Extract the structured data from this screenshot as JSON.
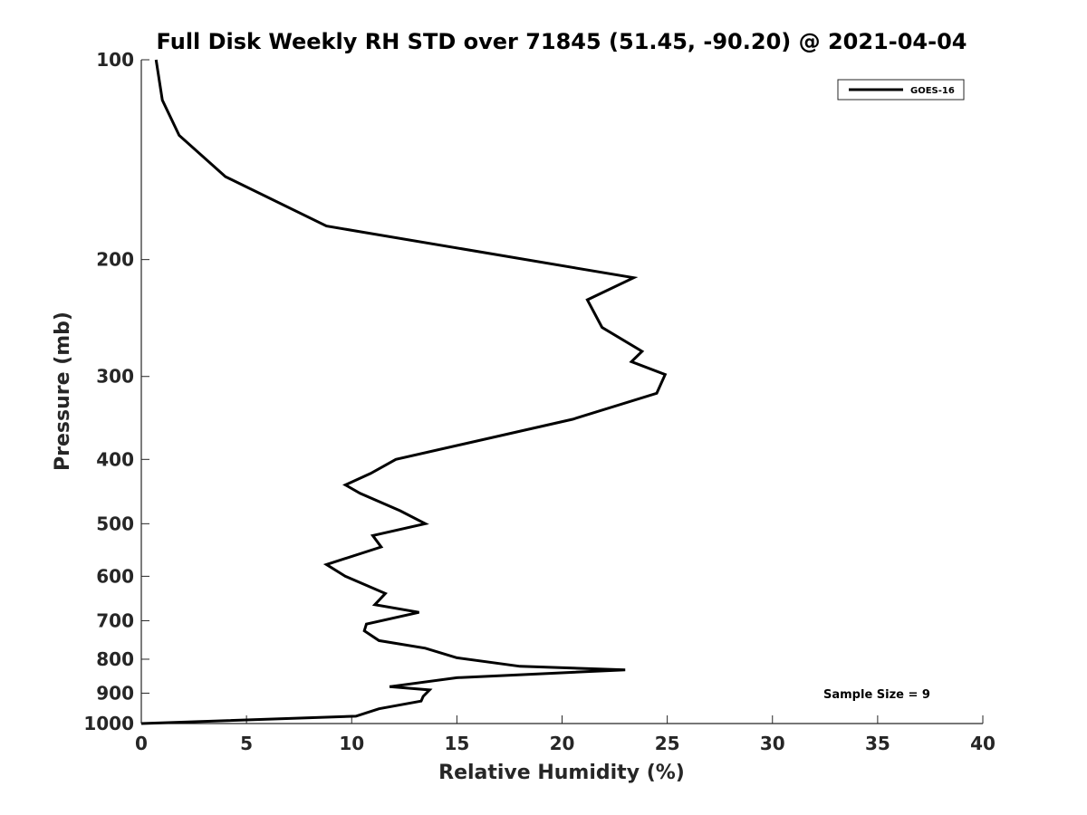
{
  "chart_data": {
    "type": "line",
    "title": "Full Disk Weekly RH STD over 71845 (51.45, -90.20) @ 2021-04-04",
    "xlabel": "Relative Humidity (%)",
    "ylabel": "Pressure (mb)",
    "xlim": [
      0,
      40
    ],
    "ylim": [
      100,
      1000
    ],
    "yscale": "log",
    "yreversed": true,
    "xticks": [
      0,
      5,
      10,
      15,
      20,
      25,
      30,
      35,
      40
    ],
    "yticks": [
      100,
      200,
      300,
      400,
      500,
      600,
      700,
      800,
      900,
      1000
    ],
    "grid": false,
    "legend_position": "top-right",
    "series": [
      {
        "name": "GOES-16",
        "color": "#000000",
        "x": [
          0.7,
          1.0,
          1.8,
          4.0,
          8.8,
          23.4,
          21.2,
          21.9,
          23.8,
          23.3,
          24.9,
          24.5,
          20.5,
          12.1,
          10.9,
          9.7,
          10.4,
          12.3,
          13.5,
          11.0,
          11.4,
          8.8,
          9.7,
          11.6,
          11.1,
          13.2,
          10.7,
          10.6,
          11.3,
          13.5,
          15.0,
          18.0,
          23.0,
          15.0,
          11.8,
          13.7,
          13.4,
          13.3,
          11.3,
          10.2,
          0.0
        ],
        "y": [
          100,
          115,
          130,
          150,
          178,
          213,
          230,
          253,
          275,
          285,
          298,
          318,
          348,
          400,
          420,
          437,
          450,
          478,
          500,
          521,
          542,
          576,
          600,
          637,
          662,
          680,
          708,
          725,
          750,
          770,
          796,
          820,
          830,
          853,
          880,
          890,
          910,
          925,
          950,
          975,
          1000
        ]
      }
    ],
    "annotations": [
      "Sample Size = 9"
    ]
  }
}
